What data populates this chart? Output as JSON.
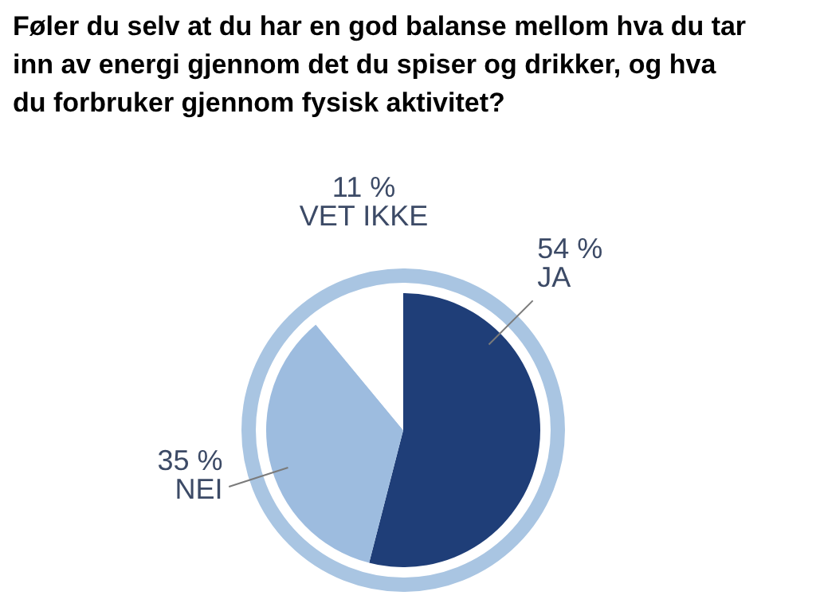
{
  "chart_data": {
    "type": "pie",
    "title": "Føler du selv at du har en god balanse mellom hva du tar inn av energi gjennom det du spiser og drikker, og hva du forbruker gjennom fysisk aktivitet?",
    "categories": [
      "JA",
      "NEI",
      "VET IKKE"
    ],
    "values": [
      54,
      35,
      11
    ],
    "value_labels": [
      "54 %",
      "35 %",
      "11 %"
    ],
    "colors": [
      "#1f3e78",
      "#9dbcdf",
      "#ffffff"
    ]
  }
}
